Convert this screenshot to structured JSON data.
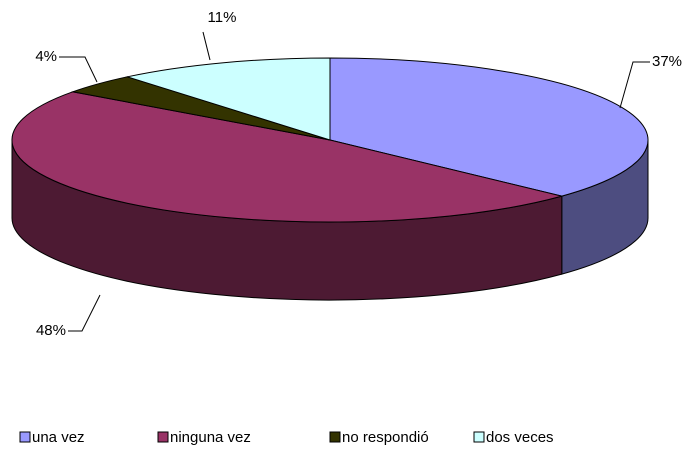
{
  "chart_data": {
    "type": "pie3d",
    "categories": [
      "una vez",
      "ninguna vez",
      "no respondió",
      "dos veces"
    ],
    "values": [
      37,
      48,
      4,
      11
    ],
    "value_labels": [
      "37%",
      "48%",
      "4%",
      "11%"
    ],
    "colors": [
      "#9999ff",
      "#993366",
      "#333300",
      "#ccffff"
    ],
    "legend": "bottom"
  }
}
